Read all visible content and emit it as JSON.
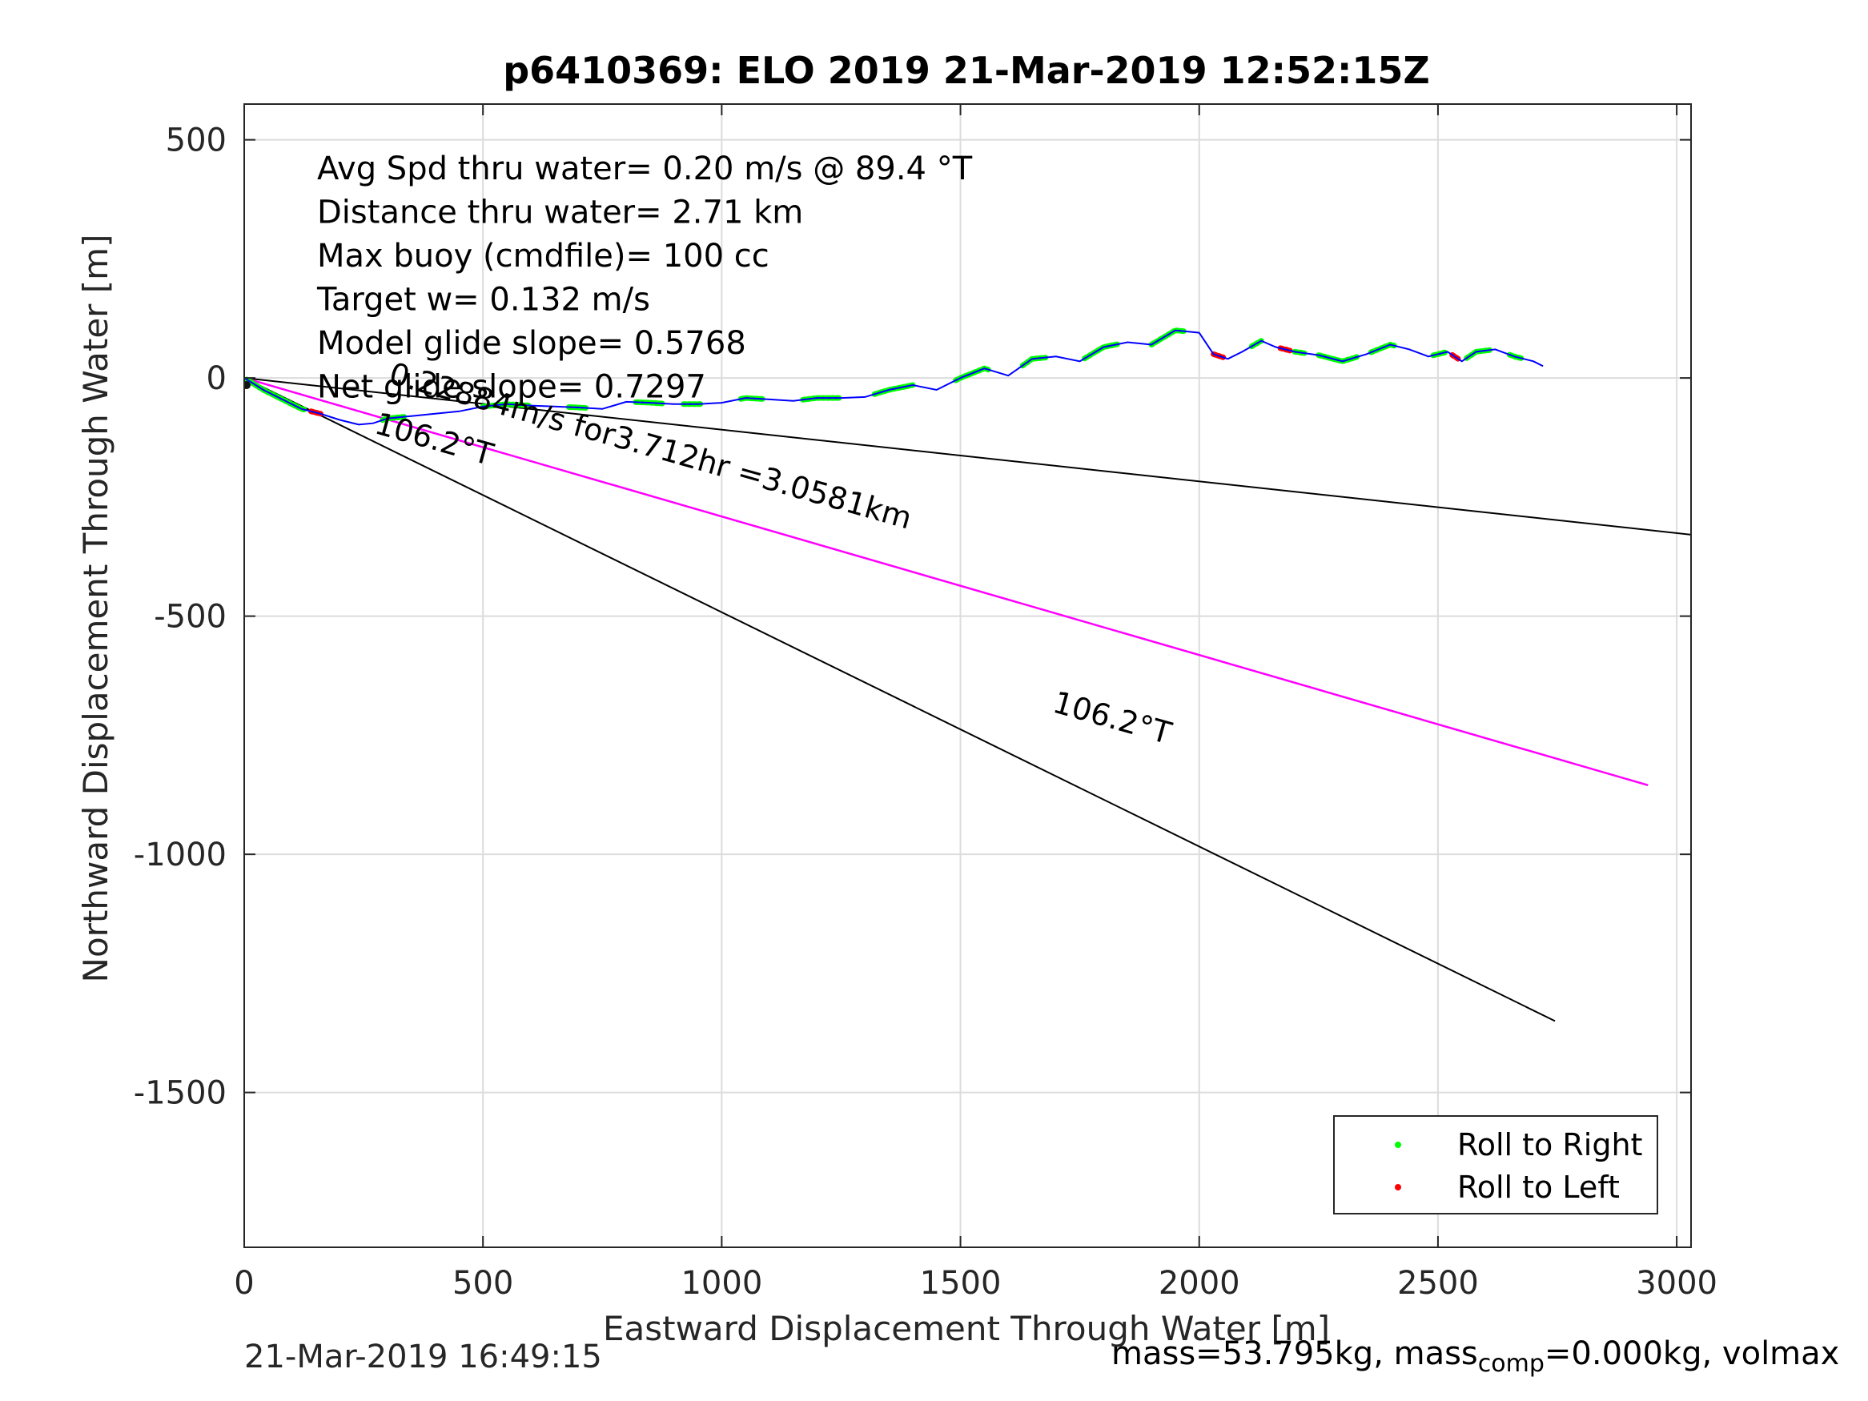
{
  "chart_data": {
    "type": "line",
    "title": "p6410369: ELO 2019 21-Mar-2019 12:52:15Z",
    "xlabel": "Eastward Displacement Through Water [m]",
    "ylabel": "Northward Displacement Through Water [m]",
    "xlim": [
      0,
      3030
    ],
    "ylim": [
      -1825,
      575
    ],
    "xticks": [
      0,
      500,
      1000,
      1500,
      2000,
      2500,
      3000
    ],
    "yticks": [
      500,
      0,
      -500,
      -1000,
      -1500
    ],
    "grid": true,
    "stats_text": [
      "Avg Spd thru water=  0.20 m/s @  89.4 °T",
      "Distance thru water=  2.71 km",
      "Max buoy (cmdfile)= 100 cc",
      "Target w= 0.132 m/s",
      "Model glide slope= 0.5768",
      "Net glide slope= 0.7297"
    ],
    "track": {
      "x": [
        0,
        40,
        80,
        120,
        160,
        200,
        240,
        270,
        300,
        350,
        400,
        450,
        500,
        550,
        600,
        650,
        700,
        750,
        800,
        850,
        900,
        950,
        1000,
        1050,
        1100,
        1150,
        1200,
        1250,
        1300,
        1350,
        1400,
        1450,
        1500,
        1550,
        1600,
        1650,
        1700,
        1750,
        1800,
        1850,
        1900,
        1950,
        2000,
        2030,
        2060,
        2090,
        2130,
        2160,
        2200,
        2250,
        2300,
        2350,
        2400,
        2440,
        2480,
        2520,
        2550,
        2580,
        2620,
        2660,
        2700,
        2720
      ],
      "y": [
        0,
        -25,
        -45,
        -65,
        -75,
        -88,
        -98,
        -95,
        -85,
        -80,
        -75,
        -70,
        -60,
        -55,
        -58,
        -60,
        -62,
        -65,
        -50,
        -52,
        -55,
        -55,
        -52,
        -42,
        -45,
        -48,
        -42,
        -42,
        -40,
        -25,
        -15,
        -25,
        0,
        20,
        5,
        40,
        45,
        35,
        65,
        75,
        70,
        100,
        95,
        50,
        40,
        55,
        78,
        65,
        55,
        48,
        35,
        50,
        70,
        60,
        45,
        55,
        35,
        55,
        60,
        45,
        35,
        25
      ]
    },
    "roll_right_x_ranges": [
      [
        5,
        130
      ],
      [
        290,
        340
      ],
      [
        500,
        600
      ],
      [
        680,
        720
      ],
      [
        820,
        880
      ],
      [
        920,
        960
      ],
      [
        1040,
        1090
      ],
      [
        1170,
        1250
      ],
      [
        1320,
        1400
      ],
      [
        1490,
        1560
      ],
      [
        1630,
        1680
      ],
      [
        1760,
        1830
      ],
      [
        1900,
        1970
      ],
      [
        2110,
        2130
      ],
      [
        2200,
        2220
      ],
      [
        2250,
        2330
      ],
      [
        2360,
        2410
      ],
      [
        2490,
        2520
      ],
      [
        2560,
        2610
      ],
      [
        2650,
        2680
      ]
    ],
    "roll_left_x_ranges": [
      [
        140,
        160
      ],
      [
        2030,
        2050
      ],
      [
        2170,
        2190
      ],
      [
        2530,
        2545
      ]
    ],
    "reference_lines": [
      {
        "kind": "black",
        "x": [
          0,
          3040
        ],
        "y": [
          0,
          -330
        ]
      },
      {
        "kind": "black",
        "x": [
          0,
          2745
        ],
        "y": [
          0,
          -1350
        ]
      },
      {
        "kind": "magenta",
        "x": [
          0,
          2940
        ],
        "y": [
          0,
          -855
        ]
      }
    ],
    "annotations": [
      {
        "text": "0.22884m/s for3.712hr =3.0581km",
        "x": 300,
        "y": -10,
        "angle_deg": 15.7
      },
      {
        "text": "106.2°T",
        "x": 270,
        "y": -115,
        "angle_deg": 15.7
      },
      {
        "text": "106.2°T",
        "x": 1690,
        "y": -700,
        "angle_deg": 15.7
      }
    ],
    "legend": {
      "placement": "bottom-right",
      "entries": [
        {
          "label": "Roll to Right",
          "color": "#00ff00"
        },
        {
          "label": "Roll to Left",
          "color": "#ff0000"
        }
      ]
    },
    "colors": {
      "track": "#0000ff",
      "roll_right": "#00ff00",
      "roll_left": "#ff0000",
      "reference": "#000000",
      "course": "#ff00ff"
    }
  },
  "footer": {
    "timestamp": "21-Mar-2019 16:49:15",
    "mass_prefix": "mass=53.795kg, mass",
    "mass_sub": "comp",
    "mass_suffix": "=0.000kg, volmax"
  }
}
